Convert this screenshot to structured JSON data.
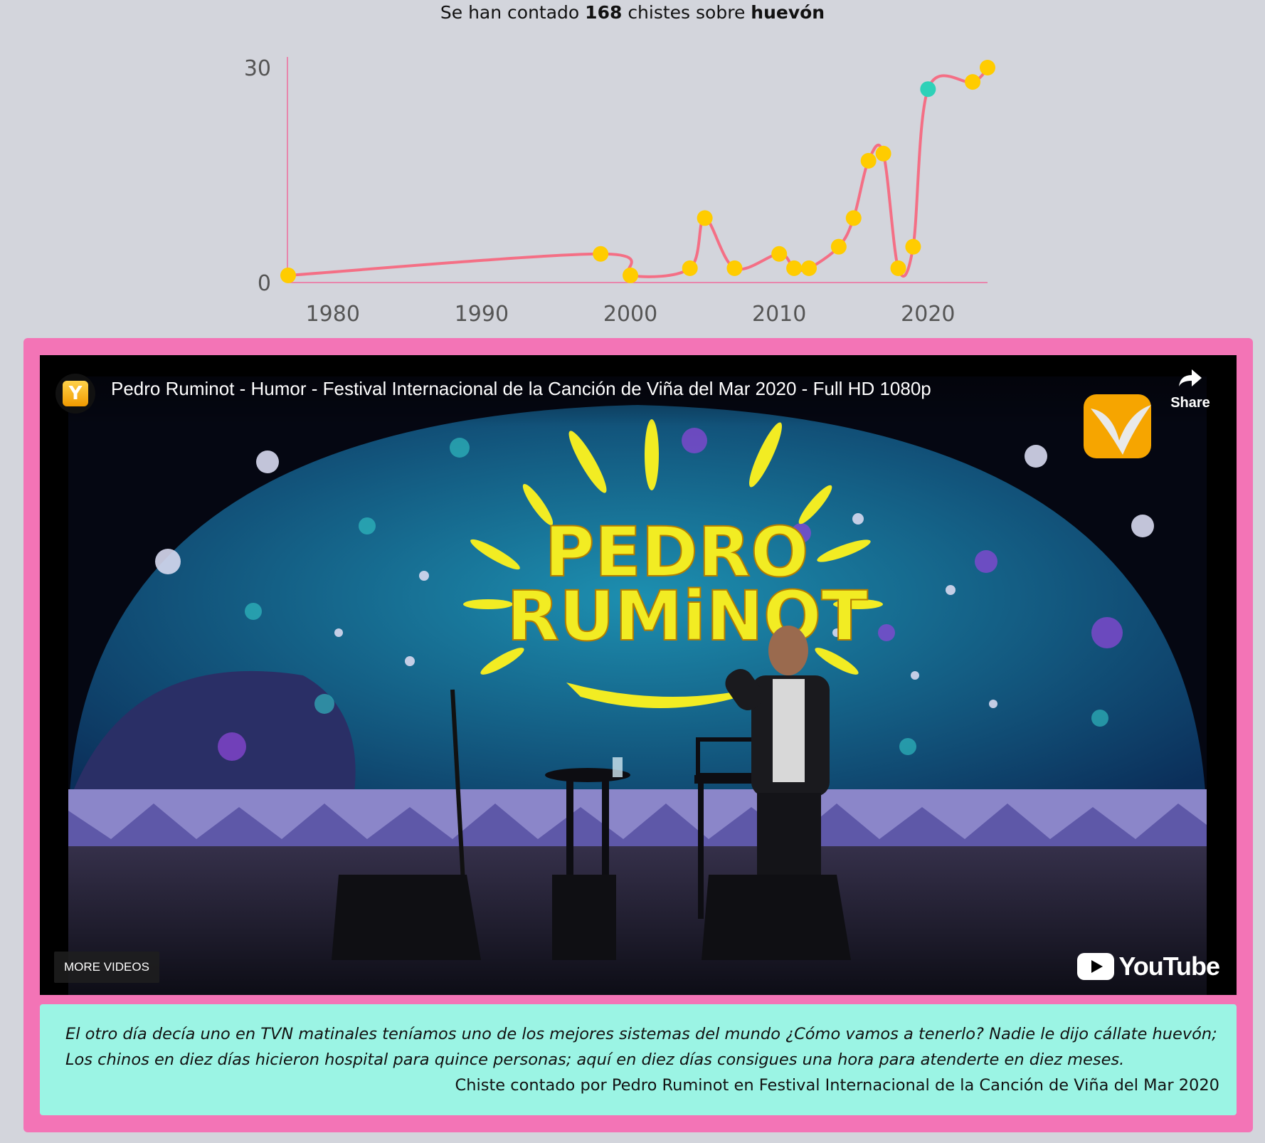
{
  "headline": {
    "prefix": "Se han contado",
    "count": "168",
    "middle": "chistes sobre",
    "word": "huevón"
  },
  "chart_data": {
    "type": "line",
    "title": "",
    "xlabel": "",
    "ylabel": "",
    "xlim": [
      1977,
      2024
    ],
    "ylim": [
      0,
      30
    ],
    "x_ticks": [
      1980,
      1990,
      2000,
      2010,
      2020
    ],
    "y_ticks": [
      0,
      30
    ],
    "grid": false,
    "line_color": "#f46f85",
    "point_color": "#ffcc00",
    "highlight_color": "#2ed1b8",
    "highlight_x": 2020,
    "series": [
      {
        "x": [
          1977,
          1998,
          2000,
          2004,
          2005,
          2007,
          2010,
          2011,
          2012,
          2014,
          2015,
          2016,
          2017,
          2018,
          2019,
          2020,
          2023,
          2024
        ],
        "y": [
          1,
          4,
          1,
          2,
          9,
          2,
          4,
          2,
          2,
          5,
          9,
          17,
          18,
          2,
          5,
          27,
          28,
          30
        ]
      }
    ]
  },
  "video": {
    "title": "Pedro Ruminot - Humor - Festival Internacional de la Canción de Viña del Mar 2020 - Full HD 1080p",
    "share_label": "Share",
    "more_videos_label": "MORE VIDEOS",
    "youtube_label": "YouTube",
    "stage_sign_line1": "PEDRO",
    "stage_sign_line2": "RUMiNOT"
  },
  "quote": {
    "text": "El otro día decía uno en TVN matinales teníamos uno de los mejores sistemas del mundo ¿Cómo vamos a tenerlo? Nadie le dijo cállate huevón; Los chinos en diez días hicieron hospital para quince personas; aquí en diez días consigues una hora para atenderte en diez meses.",
    "source": "Chiste contado por Pedro Ruminot en Festival Internacional de la Canción de Viña del Mar 2020"
  }
}
